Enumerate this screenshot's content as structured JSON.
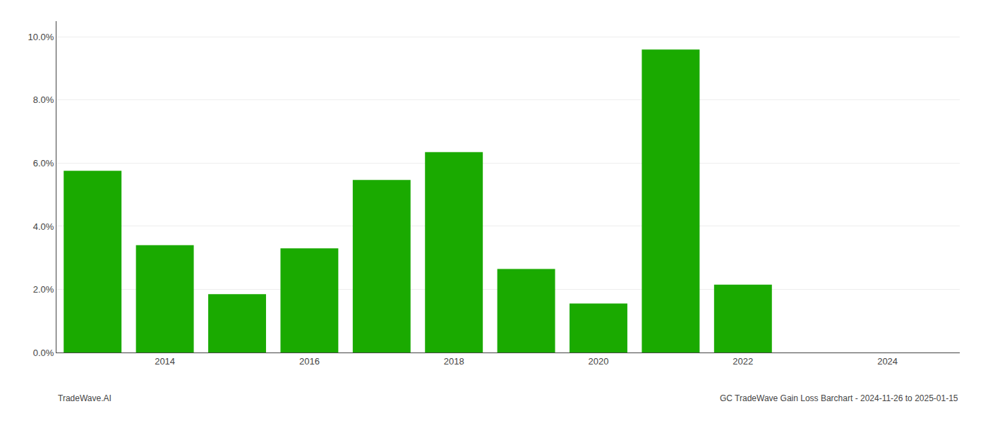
{
  "chart_data": {
    "type": "bar",
    "title": "GC TradeWave Gain Loss Barchart - 2024-11-26 to 2025-01-15",
    "annotations": [
      "TradeWave.AI"
    ],
    "x": [
      2013,
      2014,
      2015,
      2016,
      2017,
      2018,
      2019,
      2020,
      2021,
      2022,
      2023
    ],
    "values": [
      0.0576,
      0.034,
      0.0185,
      0.033,
      0.0547,
      0.0635,
      0.0265,
      0.0155,
      0.096,
      0.0215,
      0.0
    ],
    "color": "#1aaa00",
    "xlim": [
      2012.5,
      2025.0
    ],
    "xticks": [
      2014,
      2016,
      2018,
      2020,
      2022,
      2024
    ],
    "ylim": [
      0,
      0.105
    ],
    "yticks": [
      {
        "value": 0.0,
        "label": "0.0%"
      },
      {
        "value": 0.02,
        "label": "2.0%"
      },
      {
        "value": 0.04,
        "label": "4.0%"
      },
      {
        "value": 0.06,
        "label": "6.0%"
      },
      {
        "value": 0.08,
        "label": "8.0%"
      },
      {
        "value": 0.1,
        "label": "10.0%"
      }
    ],
    "grid": true
  }
}
